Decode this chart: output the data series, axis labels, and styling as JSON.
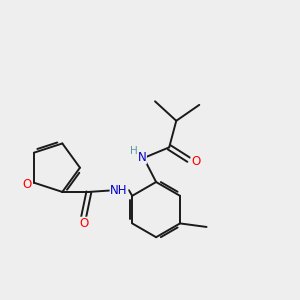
{
  "background_color": "#eeeeee",
  "bond_color": "#1a1a1a",
  "atom_colors": {
    "O": "#ff0000",
    "N": "#0000cc",
    "C": "#1a1a1a",
    "H": "#5a9a9a"
  },
  "figsize": [
    3.0,
    3.0
  ],
  "dpi": 100
}
